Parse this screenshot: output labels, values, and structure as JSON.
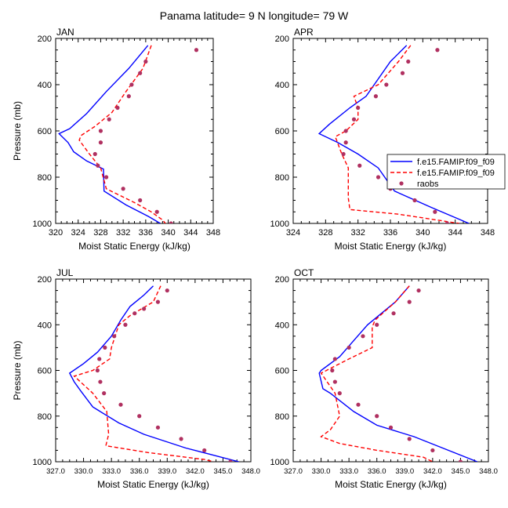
{
  "figure_title": "Panama  latitude= 9 N longitude= 79 W",
  "colors": {
    "model1": "#0000ff",
    "model2": "#ff0000",
    "obs": "#b03060"
  },
  "chart_data": [
    {
      "type": "line",
      "panel": "JAN",
      "title": "JAN",
      "xlabel": "Moist Static Energy (kJ/kg)",
      "ylabel": "Pressure (mb)",
      "xlim": [
        320,
        348
      ],
      "ylim": [
        1000,
        200
      ],
      "xticks": [
        320,
        324,
        328,
        332,
        336,
        340,
        344,
        348
      ],
      "xtick_labels": [
        "320",
        "324",
        "328",
        "332",
        "336",
        "340",
        "344",
        "348"
      ],
      "yticks": [
        200,
        400,
        600,
        800,
        1000
      ],
      "ytick_labels": [
        "200",
        "400",
        "600",
        "800",
        "1000"
      ],
      "series": [
        {
          "name": "f.e15.FAMIP.f09_f09",
          "style": "solid",
          "points": [
            [
              336.4,
              230
            ],
            [
              333.0,
              330
            ],
            [
              329.0,
              430
            ],
            [
              325.5,
              525
            ],
            [
              322.5,
              590
            ],
            [
              320.6,
              612
            ],
            [
              322.2,
              650
            ],
            [
              323.2,
              690
            ],
            [
              325.5,
              730
            ],
            [
              328.5,
              765
            ],
            [
              328.6,
              860
            ],
            [
              332.5,
              920
            ],
            [
              336.5,
              970
            ],
            [
              338.6,
              1000
            ]
          ]
        },
        {
          "name": "f.e15.FAMIP.f09_f09",
          "style": "dashed",
          "points": [
            [
              337.0,
              230
            ],
            [
              335.5,
              330
            ],
            [
              332.5,
              430
            ],
            [
              330.0,
              520
            ],
            [
              327.0,
              580
            ],
            [
              324.5,
              620
            ],
            [
              324.2,
              640
            ],
            [
              326.0,
              700
            ],
            [
              328.0,
              760
            ],
            [
              329.0,
              850
            ],
            [
              334.0,
              910
            ],
            [
              337.0,
              950
            ],
            [
              339.0,
              985
            ],
            [
              339.5,
              1000
            ]
          ]
        },
        {
          "name": "raobs",
          "style": "marker",
          "points": [
            [
              345.0,
              250
            ],
            [
              336.0,
              300
            ],
            [
              335.0,
              350
            ],
            [
              333.5,
              400
            ],
            [
              333.0,
              450
            ],
            [
              331.0,
              500
            ],
            [
              329.5,
              550
            ],
            [
              328.0,
              600
            ],
            [
              328.0,
              650
            ],
            [
              327.0,
              700
            ],
            [
              327.5,
              750
            ],
            [
              329.0,
              800
            ],
            [
              332.0,
              850
            ],
            [
              335.0,
              900
            ],
            [
              338.0,
              950
            ],
            [
              340.5,
              1000
            ]
          ]
        }
      ]
    },
    {
      "type": "line",
      "panel": "APR",
      "title": "APR",
      "xlabel": "Moist Static Energy (kJ/kg)",
      "ylabel": "",
      "xlim": [
        324,
        348
      ],
      "ylim": [
        1000,
        200
      ],
      "xticks": [
        324,
        328,
        332,
        336,
        340,
        344,
        348
      ],
      "xtick_labels": [
        "324",
        "328",
        "332",
        "336",
        "340",
        "344",
        "348"
      ],
      "yticks": [
        200,
        400,
        600,
        800,
        1000
      ],
      "ytick_labels": [
        "200",
        "400",
        "600",
        "800",
        "1000"
      ],
      "series": [
        {
          "name": "f.e15.FAMIP.f09_f09",
          "style": "solid",
          "points": [
            [
              338.0,
              230
            ],
            [
              336.0,
              300
            ],
            [
              333.0,
              450
            ],
            [
              331.0,
              500
            ],
            [
              328.5,
              570
            ],
            [
              327.2,
              612
            ],
            [
              329.5,
              650
            ],
            [
              332.0,
              700
            ],
            [
              334.5,
              760
            ],
            [
              336.5,
              860
            ],
            [
              341.0,
              930
            ],
            [
              345.7,
              1000
            ]
          ]
        },
        {
          "name": "f.e15.FAMIP.f09_f09",
          "style": "dashed",
          "points": [
            [
              338.5,
              230
            ],
            [
              337.0,
              300
            ],
            [
              334.5,
              400
            ],
            [
              331.5,
              450
            ],
            [
              332.0,
              500
            ],
            [
              332.0,
              550
            ],
            [
              330.5,
              600
            ],
            [
              329.2,
              625
            ],
            [
              330.0,
              700
            ],
            [
              330.8,
              760
            ],
            [
              330.8,
              890
            ],
            [
              331.0,
              940
            ],
            [
              337.0,
              960
            ],
            [
              344.5,
              1000
            ]
          ]
        },
        {
          "name": "raobs",
          "style": "marker",
          "points": [
            [
              341.8,
              250
            ],
            [
              338.2,
              300
            ],
            [
              337.5,
              350
            ],
            [
              335.5,
              400
            ],
            [
              334.2,
              450
            ],
            [
              332.0,
              500
            ],
            [
              331.5,
              550
            ],
            [
              330.5,
              600
            ],
            [
              330.5,
              650
            ],
            [
              330.2,
              700
            ],
            [
              332.2,
              750
            ],
            [
              334.5,
              800
            ],
            [
              336.0,
              850
            ],
            [
              339.0,
              900
            ],
            [
              341.5,
              950
            ],
            [
              343.0,
              1000
            ]
          ]
        }
      ]
    },
    {
      "type": "line",
      "panel": "JUL",
      "title": "JUL",
      "xlabel": "Moist Static Energy (kJ/kg)",
      "ylabel": "Pressure (mb)",
      "xlim": [
        327,
        348
      ],
      "ylim": [
        1000,
        200
      ],
      "xticks": [
        327,
        330,
        333,
        336,
        339,
        342,
        345,
        348
      ],
      "xtick_labels": [
        "327.0",
        "330.0",
        "333.0",
        "336.0",
        "339.0",
        "342.0",
        "345.0",
        "348.0"
      ],
      "yticks": [
        200,
        400,
        600,
        800,
        1000
      ],
      "ytick_labels": [
        "200",
        "400",
        "600",
        "800",
        "1000"
      ],
      "series": [
        {
          "name": "f.e15.FAMIP.f09_f09",
          "style": "solid",
          "points": [
            [
              337.5,
              230
            ],
            [
              336.5,
              270
            ],
            [
              335.0,
              320
            ],
            [
              334.0,
              380
            ],
            [
              333.0,
              450
            ],
            [
              331.5,
              520
            ],
            [
              330.0,
              570
            ],
            [
              328.5,
              612
            ],
            [
              329.0,
              650
            ],
            [
              329.7,
              690
            ],
            [
              331.0,
              760
            ],
            [
              333.8,
              830
            ],
            [
              336.5,
              880
            ],
            [
              341.0,
              940
            ],
            [
              346.7,
              1000
            ]
          ]
        },
        {
          "name": "f.e15.FAMIP.f09_f09",
          "style": "dashed",
          "points": [
            [
              338.3,
              230
            ],
            [
              337.5,
              300
            ],
            [
              335.0,
              360
            ],
            [
              333.8,
              400
            ],
            [
              333.0,
              500
            ],
            [
              332.8,
              550
            ],
            [
              331.0,
              600
            ],
            [
              329.0,
              625
            ],
            [
              331.0,
              700
            ],
            [
              332.5,
              780
            ],
            [
              332.7,
              880
            ],
            [
              332.4,
              930
            ],
            [
              337.0,
              960
            ],
            [
              343.0,
              990
            ],
            [
              344.0,
              1000
            ]
          ]
        },
        {
          "name": "raobs",
          "style": "marker",
          "points": [
            [
              339.0,
              250
            ],
            [
              338.0,
              300
            ],
            [
              336.5,
              330
            ],
            [
              335.5,
              350
            ],
            [
              334.5,
              400
            ],
            [
              333.3,
              450
            ],
            [
              332.3,
              500
            ],
            [
              331.7,
              550
            ],
            [
              331.5,
              600
            ],
            [
              331.8,
              650
            ],
            [
              332.2,
              700
            ],
            [
              334.0,
              750
            ],
            [
              336.0,
              800
            ],
            [
              338.0,
              850
            ],
            [
              340.5,
              900
            ],
            [
              343.0,
              950
            ],
            [
              345.8,
              1000
            ]
          ]
        }
      ]
    },
    {
      "type": "line",
      "panel": "OCT",
      "title": "OCT",
      "xlabel": "Moist Static Energy (kJ/kg)",
      "ylabel": "",
      "xlim": [
        327,
        348
      ],
      "ylim": [
        1000,
        200
      ],
      "xticks": [
        327,
        330,
        333,
        336,
        339,
        342,
        345,
        348
      ],
      "xtick_labels": [
        "327.0",
        "330.0",
        "333.0",
        "336.0",
        "339.0",
        "342.0",
        "345.0",
        "348.0"
      ],
      "yticks": [
        200,
        400,
        600,
        800,
        1000
      ],
      "ytick_labels": [
        "200",
        "400",
        "600",
        "800",
        "1000"
      ],
      "series": [
        {
          "name": "f.e15.FAMIP.f09_f09",
          "style": "solid",
          "points": [
            [
              339.5,
              230
            ],
            [
              338.0,
              300
            ],
            [
              336.5,
              350
            ],
            [
              335.0,
              400
            ],
            [
              333.5,
              470
            ],
            [
              332.0,
              540
            ],
            [
              330.0,
              600
            ],
            [
              329.8,
              612
            ],
            [
              330.2,
              680
            ],
            [
              331.0,
              700
            ],
            [
              333.5,
              780
            ],
            [
              336.0,
              840
            ],
            [
              340.0,
              890
            ],
            [
              346.8,
              1000
            ]
          ]
        },
        {
          "name": "f.e15.FAMIP.f09_f09",
          "style": "dashed",
          "points": [
            [
              339.5,
              230
            ],
            [
              338.0,
              300
            ],
            [
              335.8,
              380
            ],
            [
              335.5,
              410
            ],
            [
              335.5,
              500
            ],
            [
              333.0,
              550
            ],
            [
              330.0,
              612
            ],
            [
              331.5,
              700
            ],
            [
              332.0,
              800
            ],
            [
              331.0,
              860
            ],
            [
              330.0,
              890
            ],
            [
              332.0,
              920
            ],
            [
              336.0,
              950
            ],
            [
              341.0,
              980
            ],
            [
              342.0,
              1000
            ]
          ]
        },
        {
          "name": "raobs",
          "style": "marker",
          "points": [
            [
              340.5,
              250
            ],
            [
              339.5,
              300
            ],
            [
              337.8,
              350
            ],
            [
              336.0,
              400
            ],
            [
              334.5,
              450
            ],
            [
              333.0,
              500
            ],
            [
              331.5,
              550
            ],
            [
              331.2,
              600
            ],
            [
              331.5,
              650
            ],
            [
              332.0,
              700
            ],
            [
              334.0,
              750
            ],
            [
              336.0,
              800
            ],
            [
              337.5,
              850
            ],
            [
              339.5,
              900
            ],
            [
              342.0,
              950
            ],
            [
              345.0,
              1000
            ]
          ]
        }
      ]
    }
  ],
  "legend": {
    "location": "APR panel, lower-right",
    "entries": [
      {
        "label": "f.e15.FAMIP.f09_f09",
        "style": "solid"
      },
      {
        "label": "f.e15.FAMIP.f09_f09",
        "style": "dashed"
      },
      {
        "label": "raobs",
        "style": "marker"
      }
    ]
  }
}
